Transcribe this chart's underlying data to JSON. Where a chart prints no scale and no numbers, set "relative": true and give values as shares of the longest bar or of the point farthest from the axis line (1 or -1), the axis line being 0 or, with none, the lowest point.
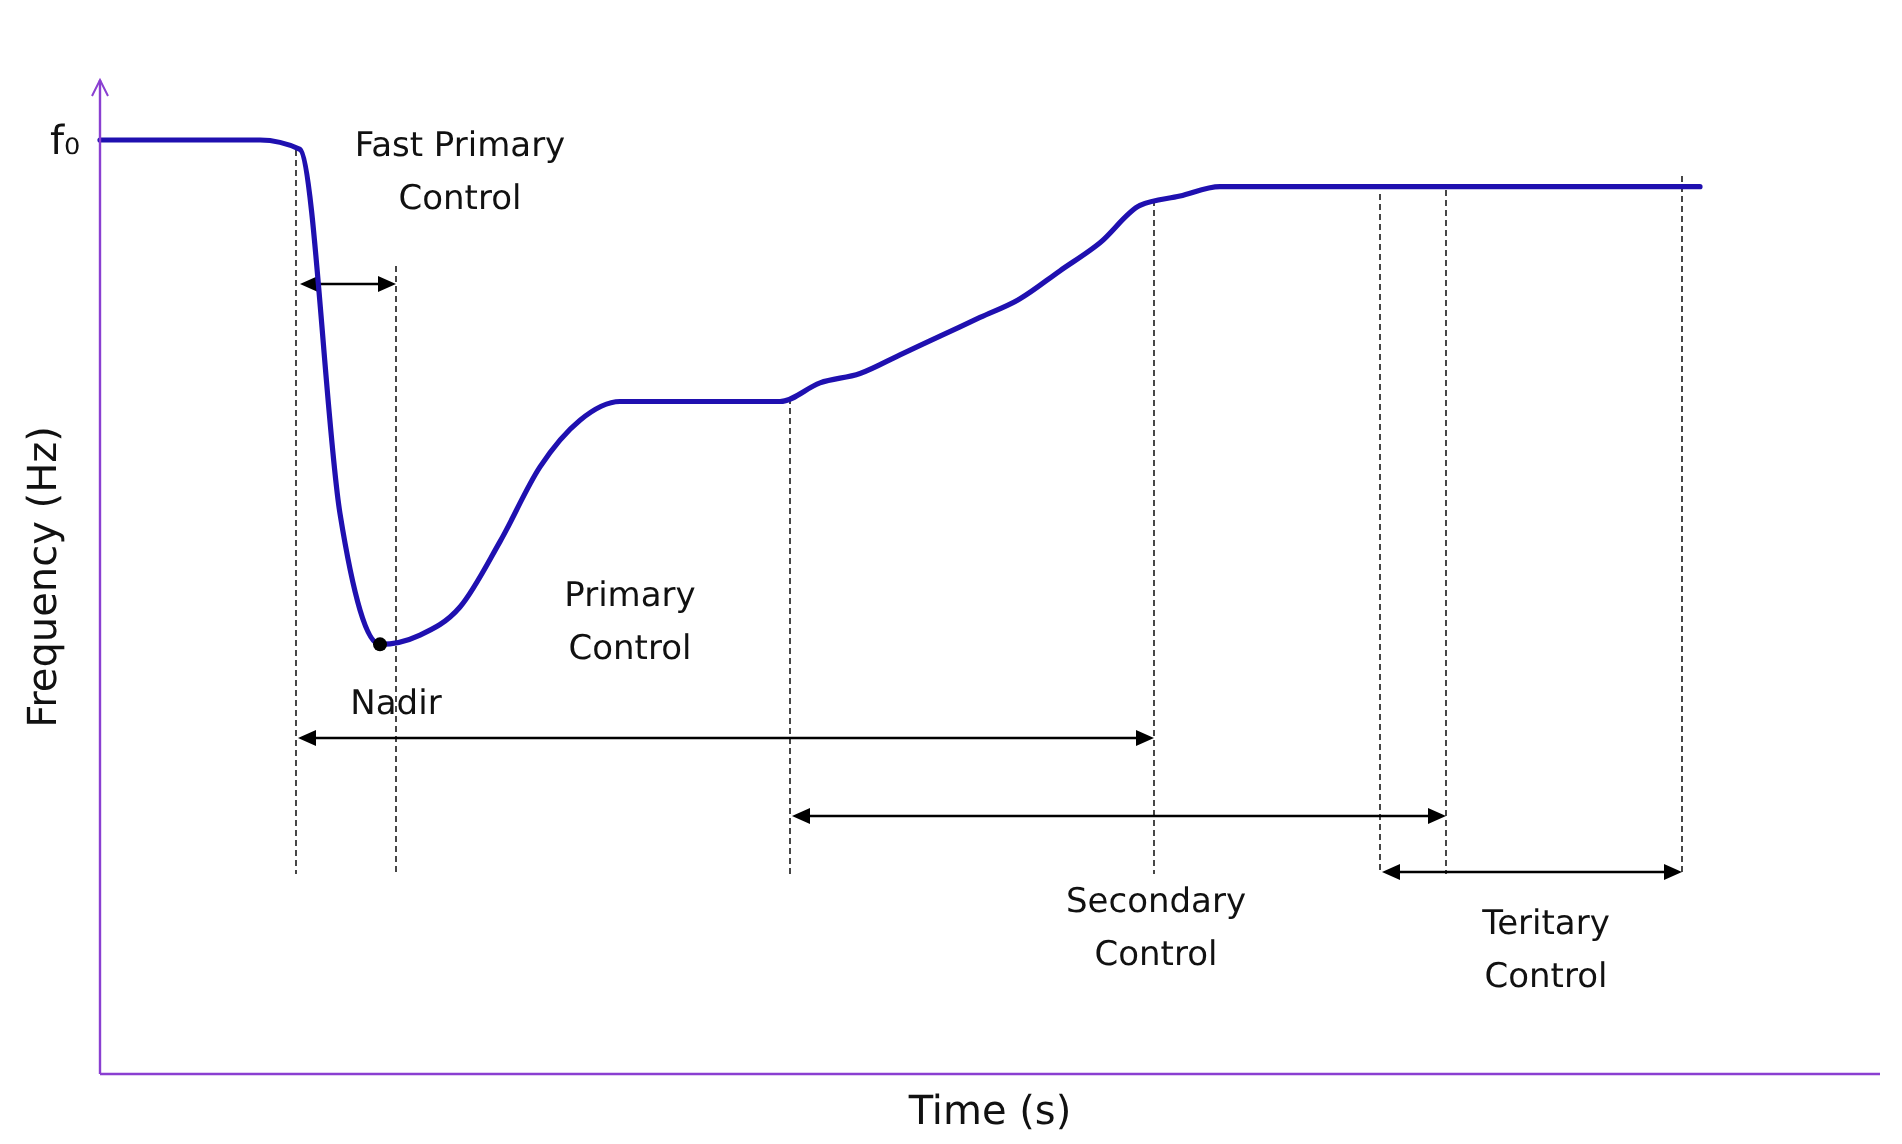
{
  "chart_data": {
    "type": "line",
    "relative": true,
    "xlabel": "Time (s)",
    "ylabel": "Frequency (Hz)",
    "categories": [
      null,
      null,
      null,
      null,
      null,
      null,
      null,
      null,
      null,
      null,
      null,
      null,
      null,
      null,
      null,
      null,
      null,
      null,
      null,
      null,
      null,
      null,
      null,
      null,
      null,
      null,
      null,
      null,
      null,
      null,
      null,
      null,
      null,
      null,
      null,
      null,
      null,
      null,
      null,
      null,
      null
    ],
    "series": [
      {
        "color": "#1f10b0",
        "values": [
          1,
          1,
          1,
          1,
          1,
          0.99,
          0.6,
          0.46,
          0.47,
          0.5,
          0.57,
          0.65,
          0.7,
          0.72,
          0.72,
          0.72,
          0.72,
          0.72,
          0.74,
          0.75,
          0.77,
          0.79,
          0.81,
          0.83,
          0.86,
          0.89,
          0.93,
          0.94,
          0.95,
          0.95,
          0.95,
          0.95,
          0.95,
          0.95,
          0.95,
          0.95,
          0.95,
          0.95,
          0.95,
          0.95,
          0.95
        ]
      }
    ],
    "annotations": [
      "f₀",
      "Fast Primary\nControl",
      "Primary\nControl",
      "Nadir",
      "Secondary\nControl",
      "Teritary\nControl"
    ]
  }
}
